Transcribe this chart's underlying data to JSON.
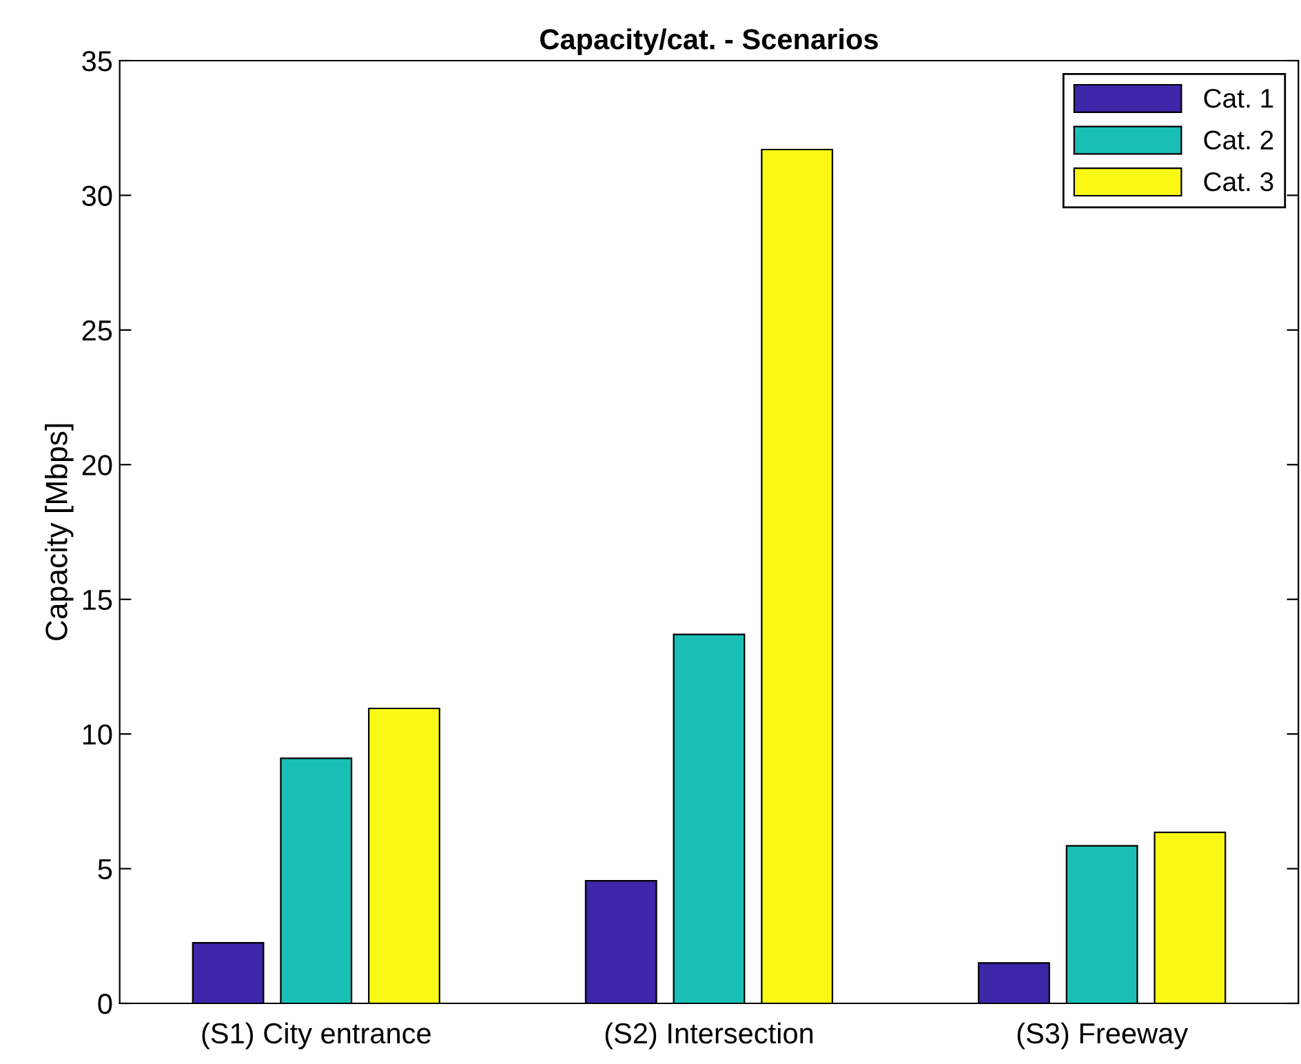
{
  "chart_data": {
    "type": "bar",
    "title": "Capacity/cat. - Scenarios",
    "ylabel": "Capacity [Mbps]",
    "categories": [
      "(S1) City entrance",
      "(S2) Intersection",
      "(S3) Freeway"
    ],
    "series": [
      {
        "name": "Cat. 1",
        "color": "#3e26a8",
        "values": [
          2.25,
          4.55,
          1.5
        ]
      },
      {
        "name": "Cat. 2",
        "color": "#19bfb5",
        "values": [
          9.1,
          13.7,
          5.85
        ]
      },
      {
        "name": "Cat. 3",
        "color": "#f9f915",
        "values": [
          10.95,
          31.7,
          6.35
        ]
      }
    ],
    "ylim": [
      0,
      35
    ],
    "yticks": [
      0,
      5,
      10,
      15,
      20,
      25,
      30,
      35
    ],
    "grid": false,
    "legend": "top right"
  }
}
